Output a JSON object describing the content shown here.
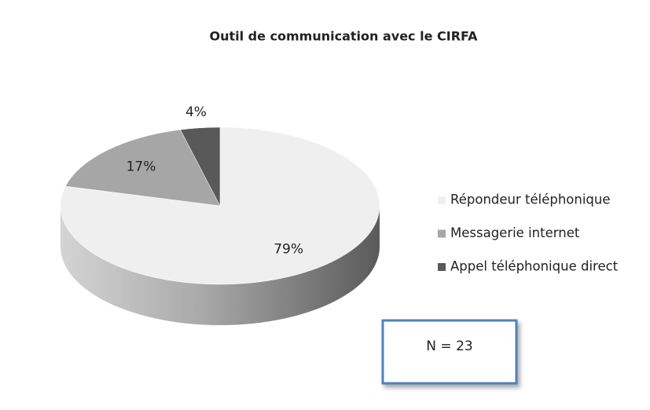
{
  "chart_data": {
    "type": "pie",
    "title": "Outil de communication avec le CIRFA",
    "categories": [
      "Répondeur téléphonique",
      "Messagerie internet",
      "Appel téléphonique direct"
    ],
    "values": [
      79,
      17,
      4
    ],
    "value_labels": [
      "79%",
      "17%",
      "4%"
    ],
    "colors": [
      "#efefef",
      "#a6a6a6",
      "#595959"
    ],
    "legend": "right",
    "annotations": [
      "N = 23"
    ]
  }
}
